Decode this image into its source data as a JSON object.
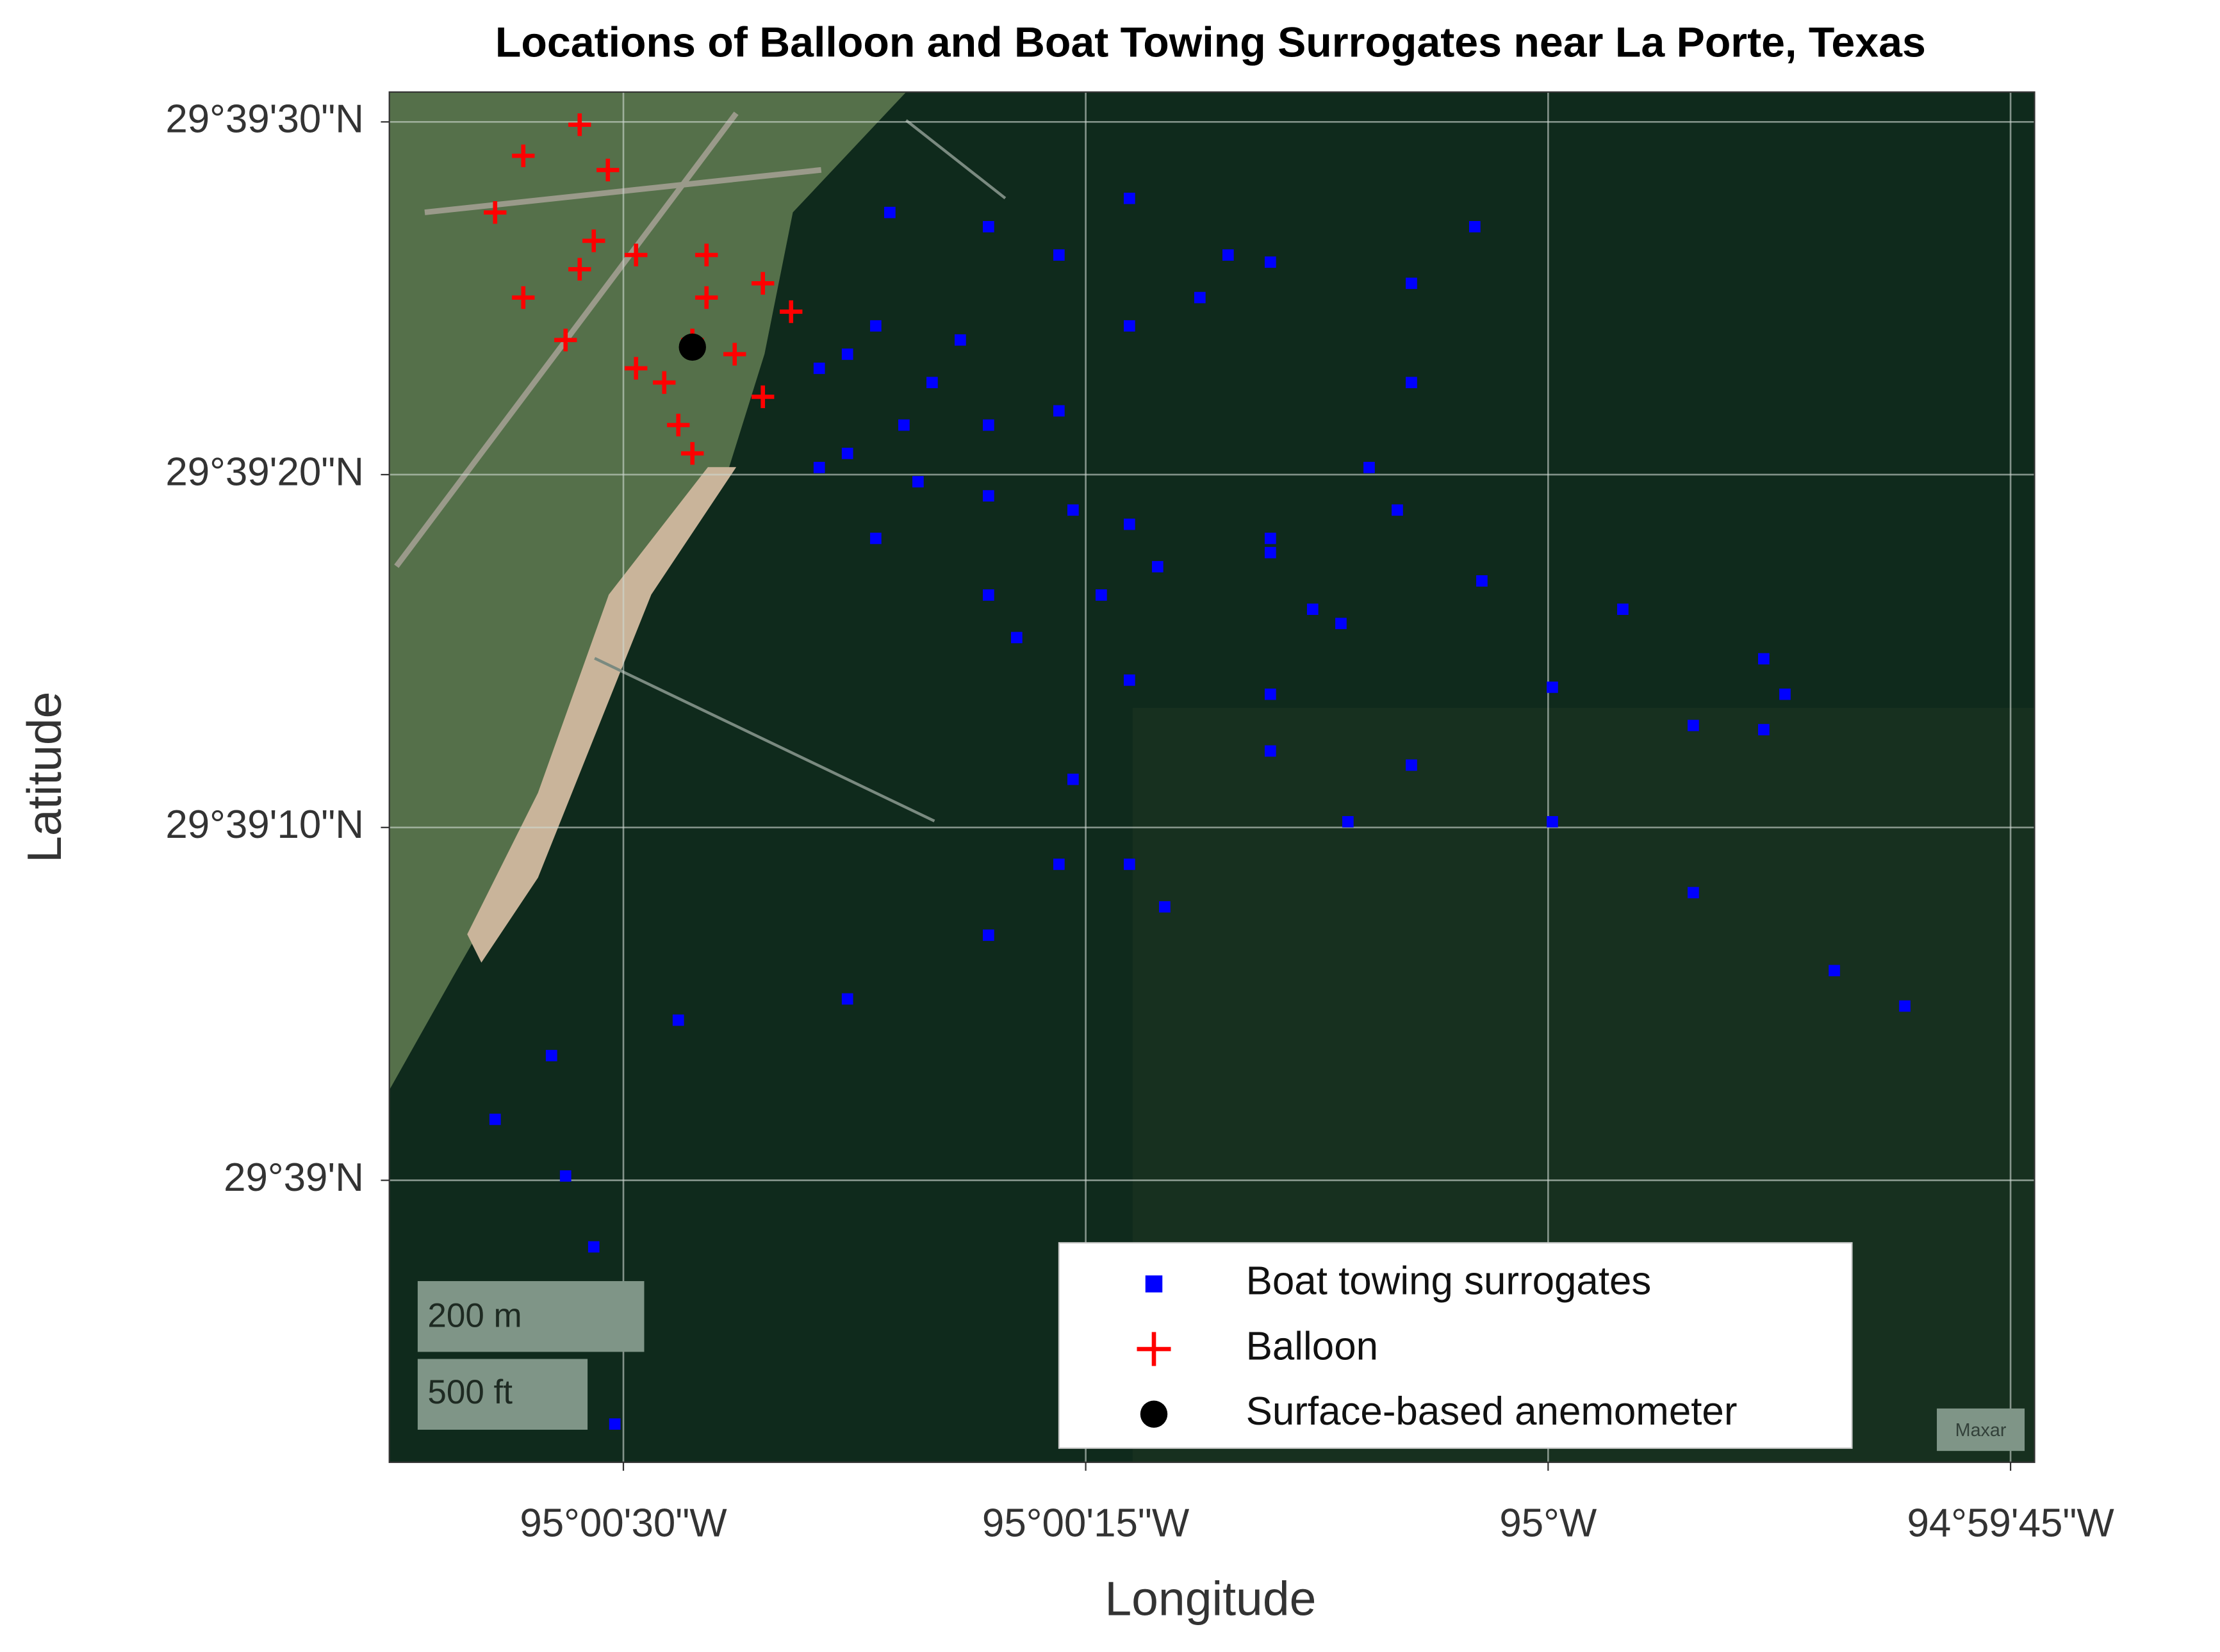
{
  "chart_data": {
    "type": "scatter",
    "title": "Locations of Balloon and Boat Towing Surrogates near La Porte, Texas",
    "x_label": "Longitude",
    "y_label": "Latitude",
    "xlim": [
      -95.010442,
      -94.995617
    ],
    "ylim": [
      29.64778,
      29.658568
    ],
    "xticks": [
      {
        "value": -95.008333,
        "label": "95°00'30\"W"
      },
      {
        "value": -95.004167,
        "label": "95°00'15\"W"
      },
      {
        "value": -95.0,
        "label": "95°W"
      },
      {
        "value": -94.995833,
        "label": "94°59'45\"W"
      }
    ],
    "yticks": [
      {
        "value": 29.658333,
        "label": "29°39'30\"N"
      },
      {
        "value": 29.655556,
        "label": "29°39'20\"N"
      },
      {
        "value": 29.652778,
        "label": "29°39'10\"N"
      },
      {
        "value": 29.65,
        "label": "29°39'N"
      }
    ],
    "grid": true,
    "legend": "lower-right",
    "map_labels": [
      "200 m",
      "500 ft",
      "Maxar"
    ],
    "series": [
      {
        "name": "Boat towing surrogates",
        "color": "#0000ff",
        "marker": "square",
        "x": [
          -95.006314,
          -95.005805,
          -95.005043,
          -95.003773,
          -95.002503,
          -95.001359,
          -95.004281,
          -95.002503,
          -95.000597,
          -94.999327,
          -94.998057,
          -94.997866,
          -94.998057,
          -94.998692,
          -94.999962,
          -95.001867,
          -95.003519,
          -95.004027,
          -95.002503,
          -95.001232,
          -94.999962,
          -94.998692,
          -94.997421,
          -94.996786,
          -95.005043,
          -95.003773,
          -95.002503,
          -95.001804,
          -95.004789,
          -95.004281,
          -95.003773,
          -95.003455,
          -95.005932,
          -95.005043,
          -95.003773,
          -95.002884,
          -95.003138,
          -95.003773,
          -95.004408,
          -95.002503,
          -95.001232,
          -95.006568,
          -95.006059,
          -95.005551,
          -95.006314,
          -95.005678,
          -95.005043,
          -95.005297,
          -95.006059,
          -95.006568,
          -95.004408,
          -95.004408,
          -95.005043,
          -95.006314,
          -95.007838,
          -95.008981,
          -95.009489,
          -95.008854,
          -95.0086,
          -95.00841,
          -95.000661,
          -95.001232,
          -95.001613,
          -95.002122
        ],
        "y": [
          29.656504,
          29.655946,
          29.655389,
          29.655165,
          29.655054,
          29.655277,
          29.655277,
          29.654942,
          29.654719,
          29.654496,
          29.654106,
          29.653827,
          29.653548,
          29.653581,
          29.653882,
          29.654384,
          29.654831,
          29.654608,
          29.653827,
          29.653269,
          29.652823,
          29.652265,
          29.651651,
          29.651372,
          29.654608,
          29.653938,
          29.65338,
          29.652823,
          29.654273,
          29.653157,
          29.652488,
          29.652153,
          29.65762,
          29.657508,
          29.657731,
          29.657285,
          29.65695,
          29.656727,
          29.657285,
          29.657229,
          29.657062,
          29.656393,
          29.656727,
          29.656281,
          29.655723,
          29.6555,
          29.655946,
          29.656616,
          29.655054,
          29.655612,
          29.656058,
          29.652488,
          29.65193,
          29.651428,
          29.651261,
          29.650982,
          29.65048,
          29.650034,
          29.649476,
          29.648081,
          29.657508,
          29.656281,
          29.655612,
          29.654496
        ]
      },
      {
        "name": "Balloon",
        "color": "#ff0000",
        "marker": "plus",
        "x": [
          -95.007711,
          -95.008219,
          -95.008854,
          -95.009235,
          -95.009489,
          -95.009235,
          -95.008727,
          -95.008473,
          -95.0086,
          -95.008219,
          -95.007584,
          -95.007076,
          -95.006822,
          -95.007076,
          -95.007711,
          -95.007838,
          -95.007965,
          -95.00733,
          -95.007584,
          -95.008727
        ],
        "y": [
          29.656616,
          29.656393,
          29.656616,
          29.65695,
          29.65762,
          29.658066,
          29.658311,
          29.657954,
          29.657397,
          29.657285,
          29.657285,
          29.657062,
          29.656839,
          29.656169,
          29.655723,
          29.655946,
          29.656281,
          29.656504,
          29.65695,
          29.657173
        ]
      },
      {
        "name": "Surface-based anemometer",
        "color": "#000000",
        "marker": "circle",
        "x": [
          -95.007711
        ],
        "y": [
          29.65656
        ]
      }
    ]
  }
}
